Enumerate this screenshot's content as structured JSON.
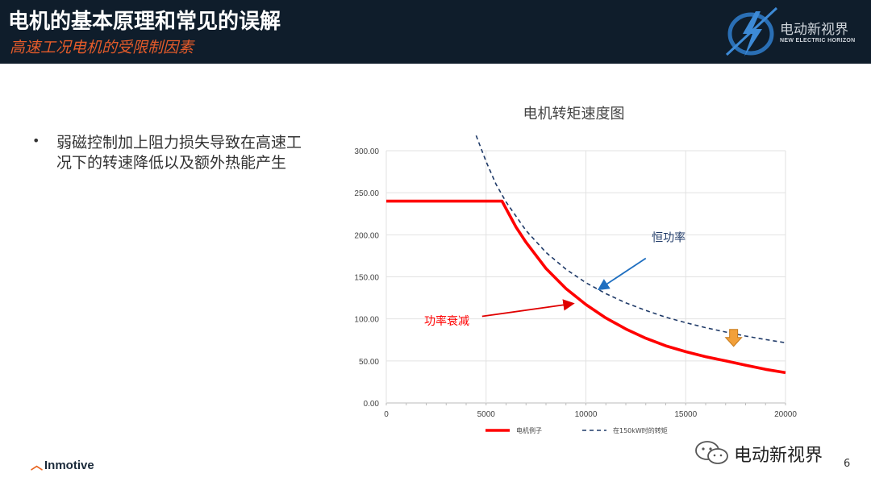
{
  "header": {
    "title": "电机的基本原理和常见的误解",
    "subtitle": "高速工况电机的受限制因素",
    "logo_cn": "电动新视界",
    "logo_en": "NEW ELECTRIC HORIZON"
  },
  "bullets": [
    "弱磁控制加上阻力损失导致在高速工况下的转速降低以及额外热能产生"
  ],
  "chart_data": {
    "type": "line",
    "title": "电机转矩速度图",
    "xlabel": "",
    "ylabel": "",
    "xlim": [
      0,
      20000
    ],
    "ylim": [
      0,
      300
    ],
    "x_ticks": [
      "0",
      "5000",
      "10000",
      "15000",
      "20000"
    ],
    "y_ticks": [
      "0.00",
      "50.00",
      "100.00",
      "150.00",
      "200.00",
      "250.00",
      "300.00"
    ],
    "grid": true,
    "legend_position": "bottom",
    "series": [
      {
        "name": "电机例子",
        "color": "#ff0000",
        "style": "solid",
        "x": [
          0,
          5800,
          6500,
          7000,
          8000,
          9000,
          10000,
          11000,
          12000,
          13000,
          14000,
          15000,
          16000,
          17000,
          18000,
          19000,
          20000
        ],
        "y": [
          240,
          240,
          209,
          191,
          160,
          136,
          117,
          101,
          88,
          77,
          68,
          61,
          55,
          50,
          45,
          40,
          36
        ]
      },
      {
        "name": "在150kW时的转矩",
        "color": "#1f3a68",
        "style": "dashed",
        "x": [
          4500,
          5000,
          5500,
          6000,
          7000,
          8000,
          9000,
          10000,
          11000,
          12000,
          13000,
          14000,
          15000,
          16000,
          17000,
          18000,
          19000,
          20000
        ],
        "y": [
          318,
          287,
          260,
          239,
          205,
          179,
          159,
          143,
          130,
          119,
          110,
          102,
          95.5,
          89.5,
          84.3,
          79.6,
          75.4,
          71.6
        ]
      }
    ],
    "annotations": [
      {
        "text": "恒功率",
        "color": "#1f3a68"
      },
      {
        "text": "功率衰减",
        "color": "#ff0000"
      }
    ]
  },
  "footer": {
    "brand": "Inmotive",
    "wechat": "电动新视界",
    "page": "6"
  }
}
